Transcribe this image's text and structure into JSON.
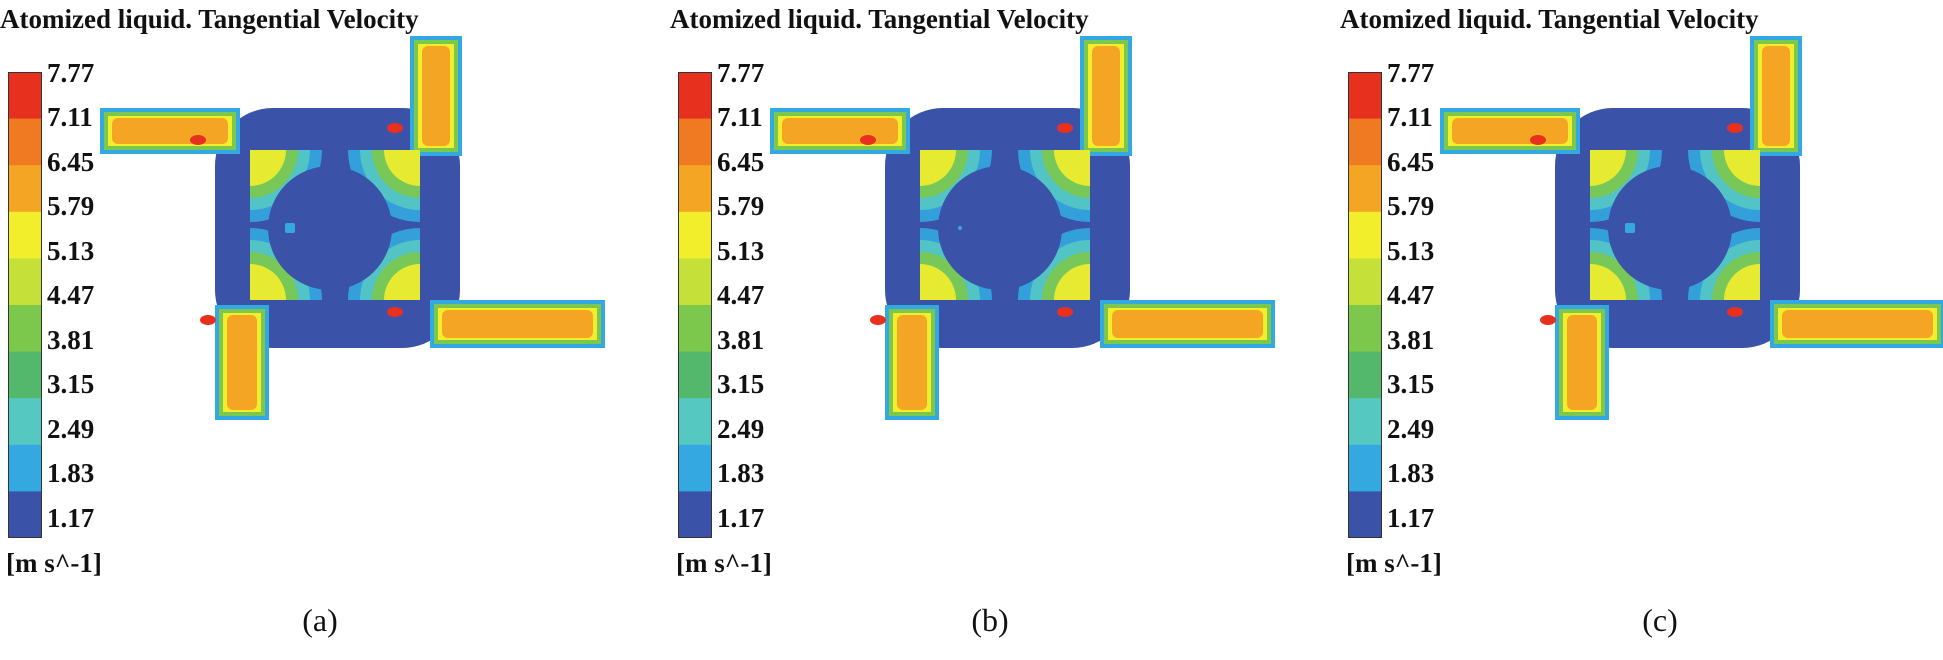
{
  "title": "Atomized liquid. Tangential Velocity",
  "legend": {
    "ticks": [
      "7.77",
      "7.11",
      "6.45",
      "5.79",
      "5.13",
      "4.47",
      "3.81",
      "3.15",
      "2.49",
      "1.83",
      "1.17"
    ],
    "unit": "[m s^-1]"
  },
  "colors": {
    "band_colors": [
      "#e8301f",
      "#f07a21",
      "#f4a524",
      "#f2ee2c",
      "#c6e03a",
      "#7cc84c",
      "#54b86c",
      "#55c8c2",
      "#34a8e0",
      "#3a52a8"
    ],
    "low": "#3a52a8",
    "mid": "#34a8e0",
    "cyan": "#55c8c2",
    "green": "#7cc84c",
    "yellow": "#f2ee2c",
    "orange": "#f4a524",
    "red": "#e8301f"
  },
  "panels": [
    {
      "label": "(a)"
    },
    {
      "label": "(b)"
    },
    {
      "label": "(c)"
    }
  ]
}
